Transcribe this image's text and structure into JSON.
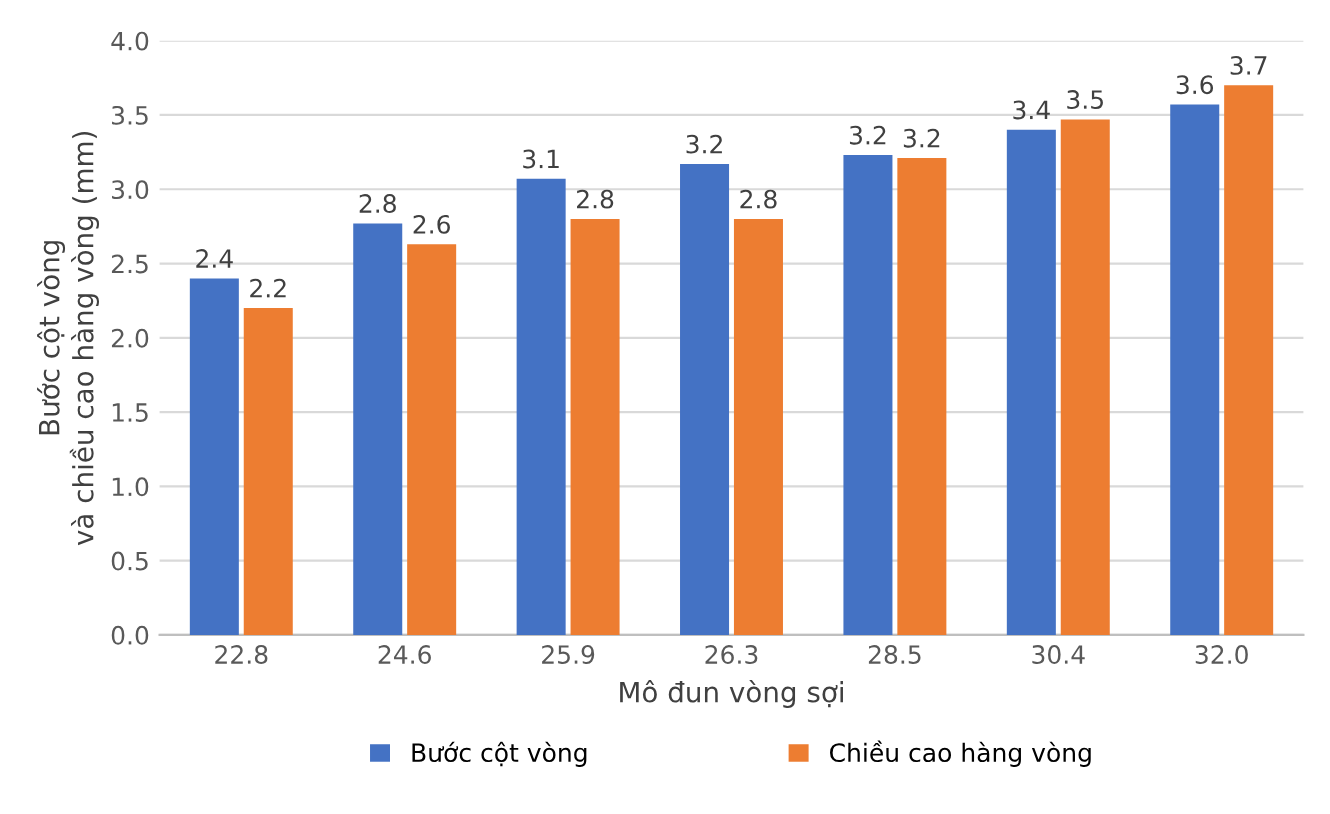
{
  "chart_data": {
    "type": "bar",
    "xlabel": "Mô đun vòng sợi",
    "ylabel": "Bước cột vòng\nvà chiều cao hàng vòng (mm)",
    "categories": [
      "22.8",
      "24.6",
      "25.9",
      "26.3",
      "28.5",
      "30.4",
      "32.0"
    ],
    "series": [
      {
        "name": "Bước cột vòng",
        "color": "#4472c4",
        "values": [
          2.4,
          2.77,
          3.07,
          3.17,
          3.23,
          3.4,
          3.57
        ],
        "value_labels": [
          "2.4",
          "2.8",
          "3.1",
          "3.2",
          "3.2",
          "3.4",
          "3.6"
        ]
      },
      {
        "name": "Chiều cao hàng vòng",
        "color": "#ed7d31",
        "values": [
          2.2,
          2.63,
          2.8,
          2.8,
          3.21,
          3.47,
          3.7
        ],
        "value_labels": [
          "2.2",
          "2.6",
          "2.8",
          "2.8",
          "3.2",
          "3.5",
          "3.7"
        ]
      }
    ],
    "ylim": [
      0,
      4
    ],
    "yticks": [
      "0.0",
      "0.5",
      "1.0",
      "1.5",
      "2.0",
      "2.5",
      "3.0",
      "3.5",
      "4.0"
    ],
    "grid": "y",
    "legend": "bottom"
  }
}
